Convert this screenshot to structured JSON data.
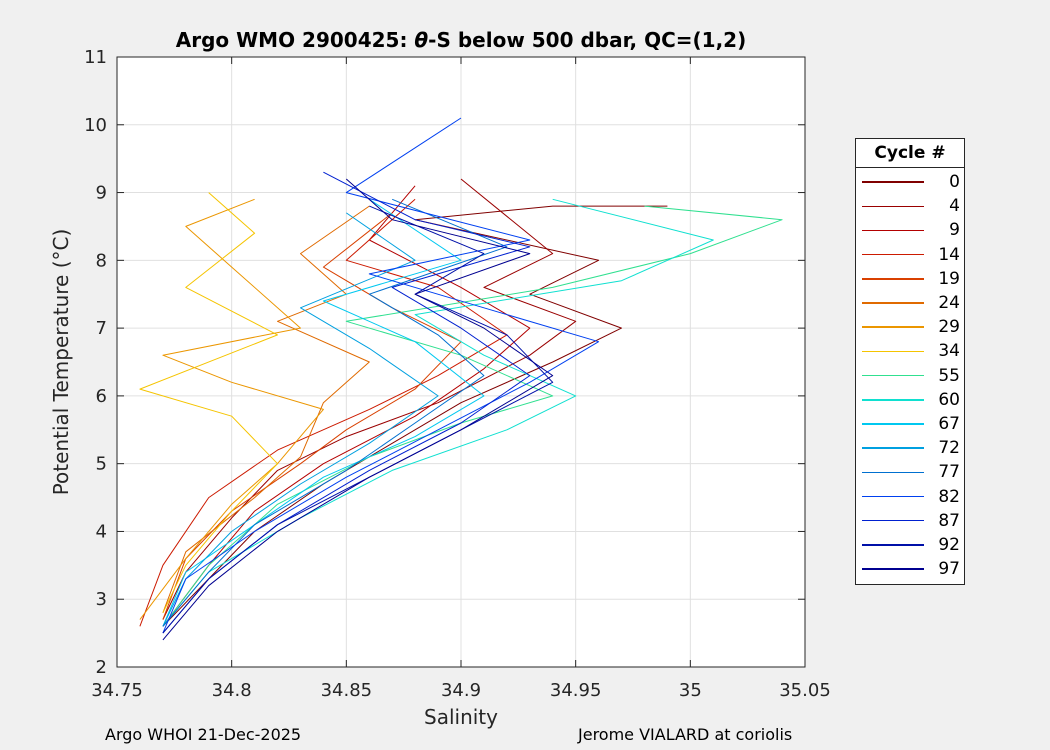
{
  "footer": {
    "left": "Argo WHOI 21-Dec-2025",
    "right": "Jerome VIALARD at coriolis"
  },
  "legend": {
    "title": "Cycle #",
    "entries": [
      {
        "label": "0",
        "color": "#800000"
      },
      {
        "label": "4",
        "color": "#9a0000"
      },
      {
        "label": "9",
        "color": "#b30000"
      },
      {
        "label": "14",
        "color": "#cc1a00"
      },
      {
        "label": "19",
        "color": "#d94000"
      },
      {
        "label": "24",
        "color": "#e06a00"
      },
      {
        "label": "29",
        "color": "#eb9600"
      },
      {
        "label": "34",
        "color": "#f5c400"
      },
      {
        "label": "55",
        "color": "#30e090"
      },
      {
        "label": "60",
        "color": "#10e0d0"
      },
      {
        "label": "67",
        "color": "#00c8f0"
      },
      {
        "label": "72",
        "color": "#00a0e0"
      },
      {
        "label": "77",
        "color": "#0070d0"
      },
      {
        "label": "82",
        "color": "#0040f0"
      },
      {
        "label": "87",
        "color": "#0020d0"
      },
      {
        "label": "92",
        "color": "#0010a8"
      },
      {
        "label": "97",
        "color": "#000090"
      }
    ]
  },
  "chart_data": {
    "type": "line",
    "title_prefix": "Argo WMO 2900425: ",
    "title_theta": "θ",
    "title_suffix": "-S below 500 dbar,  QC=(1,2)",
    "xlabel": "Salinity",
    "ylabel": "Potential Temperature (°C)",
    "xlim": [
      34.75,
      35.05
    ],
    "ylim": [
      2,
      11
    ],
    "xticks": [
      34.75,
      34.8,
      34.85,
      34.9,
      34.95,
      35,
      35.05
    ],
    "xtick_labels": [
      "34.75",
      "34.8",
      "34.85",
      "34.9",
      "34.95",
      "35",
      "35.05"
    ],
    "yticks": [
      2,
      3,
      4,
      5,
      6,
      7,
      8,
      9,
      10,
      11
    ],
    "ytick_labels": [
      "2",
      "3",
      "4",
      "5",
      "6",
      "7",
      "8",
      "9",
      "10",
      "11"
    ],
    "grid": true,
    "series": [
      {
        "name": "0",
        "x": [
          34.77,
          34.79,
          34.81,
          34.84,
          34.87,
          34.9,
          34.94,
          34.97,
          34.93,
          34.96,
          34.88,
          34.94,
          34.99
        ],
        "y": [
          2.6,
          3.3,
          4.0,
          4.7,
          5.3,
          5.9,
          6.5,
          7.0,
          7.5,
          8.0,
          8.6,
          8.8,
          8.8
        ]
      },
      {
        "name": "4",
        "x": [
          34.77,
          34.78,
          34.8,
          34.82,
          34.85,
          34.89,
          34.93,
          34.95,
          34.91,
          34.94,
          34.9
        ],
        "y": [
          2.7,
          3.4,
          4.2,
          4.9,
          5.4,
          5.9,
          6.6,
          7.1,
          7.6,
          8.1,
          9.2
        ]
      },
      {
        "name": "9",
        "x": [
          34.77,
          34.79,
          34.81,
          34.84,
          34.88,
          34.91,
          34.93,
          34.9,
          34.86,
          34.88
        ],
        "y": [
          2.6,
          3.5,
          4.3,
          5.0,
          5.7,
          6.4,
          7.0,
          7.6,
          8.3,
          9.1
        ]
      },
      {
        "name": "14",
        "x": [
          34.76,
          34.77,
          34.79,
          34.82,
          34.86,
          34.89,
          34.92,
          34.89,
          34.85,
          34.88
        ],
        "y": [
          2.6,
          3.5,
          4.5,
          5.2,
          5.8,
          6.3,
          6.9,
          7.6,
          8.0,
          8.9
        ]
      },
      {
        "name": "19",
        "x": [
          34.77,
          34.78,
          34.8,
          34.83,
          34.85,
          34.88,
          34.9,
          34.87,
          34.84,
          34.87
        ],
        "y": [
          2.7,
          3.6,
          4.3,
          5.0,
          5.5,
          6.1,
          6.8,
          7.3,
          7.9,
          8.7
        ]
      },
      {
        "name": "24",
        "x": [
          34.77,
          34.78,
          34.81,
          34.83,
          34.84,
          34.86,
          34.82,
          34.85,
          34.83,
          34.86
        ],
        "y": [
          2.8,
          3.7,
          4.5,
          5.1,
          5.9,
          6.5,
          7.1,
          7.5,
          8.1,
          8.8
        ]
      },
      {
        "name": "29",
        "x": [
          34.76,
          34.78,
          34.8,
          34.82,
          34.84,
          34.8,
          34.77,
          34.83,
          34.8,
          34.78,
          34.81
        ],
        "y": [
          2.7,
          3.6,
          4.4,
          5.0,
          5.8,
          6.2,
          6.6,
          7.0,
          7.9,
          8.5,
          8.9
        ]
      },
      {
        "name": "34",
        "x": [
          34.77,
          34.78,
          34.8,
          34.82,
          34.8,
          34.76,
          34.82,
          34.78,
          34.81,
          34.79
        ],
        "y": [
          2.8,
          3.5,
          4.3,
          5.0,
          5.7,
          6.1,
          6.9,
          7.6,
          8.4,
          9.0
        ]
      },
      {
        "name": "55",
        "x": [
          34.77,
          34.79,
          34.82,
          34.86,
          34.9,
          34.94,
          34.9,
          34.85,
          34.94,
          35.0,
          35.04,
          34.98
        ],
        "y": [
          2.6,
          3.5,
          4.4,
          5.1,
          5.6,
          6.0,
          6.6,
          7.1,
          7.6,
          8.1,
          8.6,
          8.8
        ]
      },
      {
        "name": "60",
        "x": [
          34.77,
          34.79,
          34.83,
          34.87,
          34.92,
          34.95,
          34.91,
          34.88,
          34.97,
          35.01,
          34.94
        ],
        "y": [
          2.6,
          3.4,
          4.2,
          4.9,
          5.5,
          6.0,
          6.6,
          7.2,
          7.7,
          8.3,
          8.9
        ]
      },
      {
        "name": "67",
        "x": [
          34.77,
          34.78,
          34.81,
          34.84,
          34.88,
          34.91,
          34.88,
          34.84,
          34.9,
          34.86
        ],
        "y": [
          2.6,
          3.4,
          4.1,
          4.8,
          5.4,
          6.0,
          6.8,
          7.4,
          8.0,
          8.9
        ]
      },
      {
        "name": "72",
        "x": [
          34.77,
          34.78,
          34.8,
          34.83,
          34.86,
          34.89,
          34.86,
          34.83,
          34.88,
          34.85
        ],
        "y": [
          2.6,
          3.3,
          4.0,
          4.7,
          5.3,
          6.0,
          6.7,
          7.3,
          8.0,
          8.7
        ]
      },
      {
        "name": "77",
        "x": [
          34.77,
          34.79,
          34.81,
          34.85,
          34.88,
          34.91,
          34.89,
          34.86,
          34.92,
          34.87
        ],
        "y": [
          2.6,
          3.4,
          4.1,
          4.9,
          5.6,
          6.3,
          6.9,
          7.5,
          8.2,
          8.9
        ]
      },
      {
        "name": "82",
        "x": [
          34.77,
          34.78,
          34.81,
          34.85,
          34.89,
          34.93,
          34.96,
          34.91,
          34.86,
          34.93,
          34.85,
          34.9
        ],
        "y": [
          2.5,
          3.3,
          4.0,
          4.8,
          5.5,
          6.2,
          6.8,
          7.3,
          7.8,
          8.3,
          9.0,
          10.1
        ]
      },
      {
        "name": "87",
        "x": [
          34.77,
          34.79,
          34.82,
          34.86,
          34.9,
          34.93,
          34.9,
          34.87,
          34.93,
          34.88,
          34.84
        ],
        "y": [
          2.5,
          3.3,
          4.1,
          4.9,
          5.6,
          6.3,
          7.0,
          7.6,
          8.2,
          8.6,
          9.3
        ]
      },
      {
        "name": "92",
        "x": [
          34.77,
          34.79,
          34.82,
          34.86,
          34.9,
          34.94,
          34.92,
          34.88,
          34.91,
          34.86
        ],
        "y": [
          2.5,
          3.3,
          4.1,
          4.8,
          5.5,
          6.2,
          6.9,
          7.5,
          8.1,
          8.8
        ]
      },
      {
        "name": "97",
        "x": [
          34.77,
          34.79,
          34.82,
          34.86,
          34.9,
          34.94,
          34.91,
          34.88,
          34.93,
          34.87,
          34.85
        ],
        "y": [
          2.4,
          3.2,
          4.0,
          4.8,
          5.5,
          6.3,
          7.0,
          7.5,
          8.1,
          8.6,
          9.2
        ]
      }
    ]
  }
}
